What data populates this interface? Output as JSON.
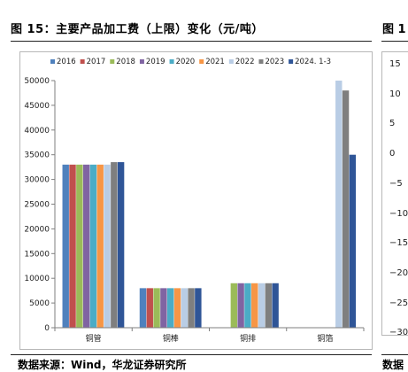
{
  "figure": {
    "title": "图 15：主要产品加工费（上限）变化（元/吨）",
    "title_right": "图 1",
    "source": "数据来源：Wind，华龙证券研究所",
    "source_right": "数据"
  },
  "right_axis_ticks": [
    "15",
    "10",
    "5",
    "0",
    "−5",
    "−10",
    "−15",
    "−20",
    "−25",
    "−30"
  ],
  "chart_data": {
    "type": "bar",
    "title": "",
    "xlabel": "",
    "ylabel": "",
    "ylim": [
      0,
      50000
    ],
    "yticks": [
      0,
      5000,
      10000,
      15000,
      20000,
      25000,
      30000,
      35000,
      40000,
      45000,
      50000
    ],
    "categories": [
      "铜管",
      "铜棒",
      "铜排",
      "铜箔"
    ],
    "legend_position": "top",
    "grid": false,
    "series": [
      {
        "name": "2016",
        "color": "#4f81bd",
        "values": [
          33000,
          8000,
          null,
          null
        ]
      },
      {
        "name": "2017",
        "color": "#c0504d",
        "values": [
          33000,
          8000,
          null,
          null
        ]
      },
      {
        "name": "2018",
        "color": "#9bbb59",
        "values": [
          33000,
          8000,
          9000,
          null
        ]
      },
      {
        "name": "2019",
        "color": "#8064a2",
        "values": [
          33000,
          8000,
          9000,
          null
        ]
      },
      {
        "name": "2020",
        "color": "#4bacc6",
        "values": [
          33000,
          8000,
          9000,
          null
        ]
      },
      {
        "name": "2021",
        "color": "#f79646",
        "values": [
          33000,
          8000,
          9000,
          null
        ]
      },
      {
        "name": "2022",
        "color": "#b9cde5",
        "values": [
          33000,
          8000,
          9000,
          50000
        ]
      },
      {
        "name": "2023",
        "color": "#7f7f7f",
        "values": [
          33500,
          8000,
          9000,
          48000
        ]
      },
      {
        "name": "2024. 1-3",
        "color": "#2f5597",
        "values": [
          33500,
          8000,
          9000,
          35000
        ]
      }
    ]
  }
}
